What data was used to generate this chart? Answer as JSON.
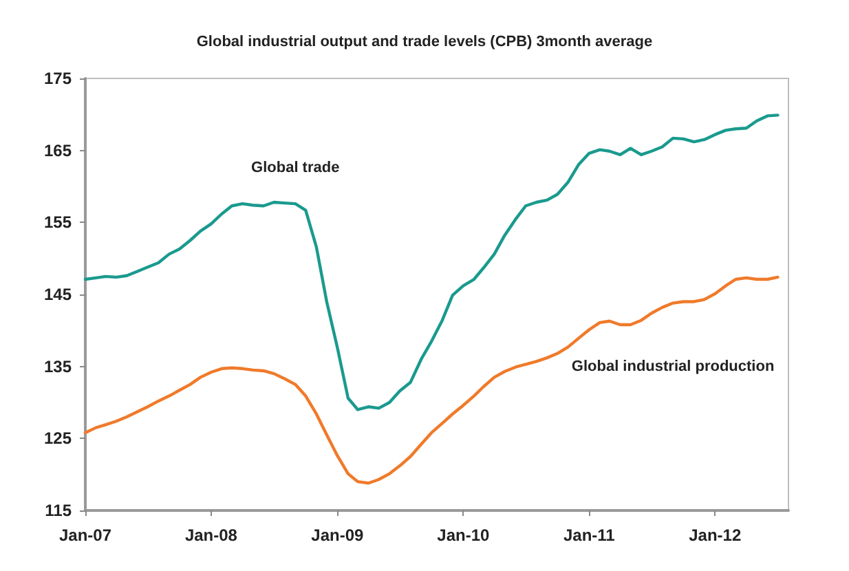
{
  "chart_data": {
    "type": "line",
    "title": "Global industrial output and trade levels (CPB) 3month average",
    "x": [
      "2007-01",
      "2007-02",
      "2007-03",
      "2007-04",
      "2007-05",
      "2007-06",
      "2007-07",
      "2007-08",
      "2007-09",
      "2007-10",
      "2007-11",
      "2007-12",
      "2008-01",
      "2008-02",
      "2008-03",
      "2008-04",
      "2008-05",
      "2008-06",
      "2008-07",
      "2008-08",
      "2008-09",
      "2008-10",
      "2008-11",
      "2008-12",
      "2009-01",
      "2009-02",
      "2009-03",
      "2009-04",
      "2009-05",
      "2009-06",
      "2009-07",
      "2009-08",
      "2009-09",
      "2009-10",
      "2009-11",
      "2009-12",
      "2010-01",
      "2010-02",
      "2010-03",
      "2010-04",
      "2010-05",
      "2010-06",
      "2010-07",
      "2010-08",
      "2010-09",
      "2010-10",
      "2010-11",
      "2010-12",
      "2011-01",
      "2011-02",
      "2011-03",
      "2011-04",
      "2011-05",
      "2011-06",
      "2011-07",
      "2011-08",
      "2011-09",
      "2011-10",
      "2011-11",
      "2011-12",
      "2012-01",
      "2012-02",
      "2012-03",
      "2012-04",
      "2012-05",
      "2012-06",
      "2012-07"
    ],
    "series": [
      {
        "name": "Global trade",
        "color": "#1a9a8e",
        "values": [
          147.1,
          147.3,
          147.5,
          147.4,
          147.6,
          148.2,
          148.8,
          149.4,
          150.6,
          151.3,
          152.5,
          153.8,
          154.8,
          156.2,
          157.3,
          157.6,
          157.4,
          157.3,
          157.8,
          157.7,
          157.6,
          156.7,
          151.6,
          144,
          137.6,
          130.6,
          129,
          129.4,
          129.2,
          130,
          131.6,
          132.8,
          136,
          138.5,
          141.4,
          144.9,
          146.2,
          147.1,
          148.7,
          150.6,
          153.2,
          155.4,
          157.3,
          157.8,
          158.1,
          158.9,
          160.6,
          163,
          164.6,
          165.1,
          164.9,
          164.4,
          165.3,
          164.4,
          164.9,
          165.5,
          166.7,
          166.6,
          166.2,
          166.5,
          167.2,
          167.8,
          168,
          168.1,
          169.1,
          169.8,
          169.9
        ]
      },
      {
        "name": "Global industrial production",
        "color": "#f07a2a",
        "values": [
          125.8,
          126.5,
          126.9,
          127.4,
          128,
          128.7,
          129.4,
          130.2,
          130.9,
          131.7,
          132.5,
          133.5,
          134.2,
          134.7,
          134.8,
          134.7,
          134.5,
          134.4,
          134,
          133.3,
          132.5,
          130.9,
          128.4,
          125.5,
          122.6,
          120.1,
          119,
          118.8,
          119.3,
          120.1,
          121.2,
          122.5,
          124.2,
          125.8,
          127.1,
          128.4,
          129.6,
          130.9,
          132.2,
          133.5,
          134.3,
          134.9,
          135.3,
          135.7,
          136.2,
          136.8,
          137.7,
          138.9,
          140.1,
          141.1,
          141.3,
          140.8,
          140.8,
          141.4,
          142.4,
          143.2,
          143.8,
          144,
          144,
          144.3,
          145.1,
          146.2,
          147.1,
          147.3,
          147.1,
          147.1,
          147.4
        ]
      }
    ],
    "xlim": [
      "2007-01",
      "2012-08"
    ],
    "xticks": [
      {
        "value": "2007-01",
        "label": "Jan-07"
      },
      {
        "value": "2008-01",
        "label": "Jan-08"
      },
      {
        "value": "2009-01",
        "label": "Jan-09"
      },
      {
        "value": "2010-01",
        "label": "Jan-10"
      },
      {
        "value": "2011-01",
        "label": "Jan-11"
      },
      {
        "value": "2012-01",
        "label": "Jan-12"
      }
    ],
    "ylim": [
      115,
      175
    ],
    "yticks": [
      115,
      125,
      135,
      145,
      155,
      165,
      175
    ],
    "grid": false,
    "legend": false,
    "marker": "none",
    "line_style": "solid"
  }
}
